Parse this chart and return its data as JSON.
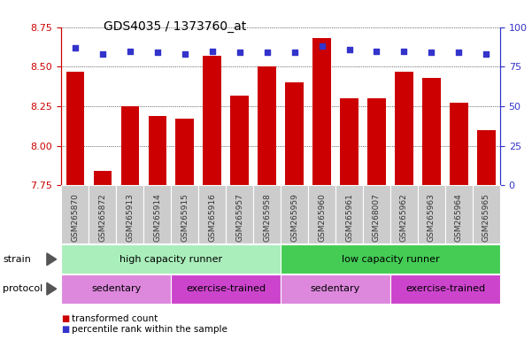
{
  "title": "GDS4035 / 1373760_at",
  "samples": [
    "GSM265870",
    "GSM265872",
    "GSM265913",
    "GSM265914",
    "GSM265915",
    "GSM265916",
    "GSM265957",
    "GSM265958",
    "GSM265959",
    "GSM265960",
    "GSM265961",
    "GSM268007",
    "GSM265962",
    "GSM265963",
    "GSM265964",
    "GSM265965"
  ],
  "bar_values": [
    8.47,
    7.84,
    8.25,
    8.19,
    8.17,
    8.57,
    8.32,
    8.5,
    8.4,
    8.68,
    8.3,
    8.3,
    8.47,
    8.43,
    8.27,
    8.1
  ],
  "percentile_values": [
    87,
    83,
    85,
    84,
    83,
    85,
    84,
    84,
    84,
    88,
    86,
    85,
    85,
    84,
    84,
    83
  ],
  "ylim_left": [
    7.75,
    8.75
  ],
  "ylim_right": [
    0,
    100
  ],
  "yticks_left": [
    7.75,
    8.0,
    8.25,
    8.5,
    8.75
  ],
  "yticks_right": [
    0,
    25,
    50,
    75,
    100
  ],
  "bar_color": "#cc0000",
  "dot_color": "#3333cc",
  "grid_color": "#000000",
  "bg_color": "#ffffff",
  "xticklabel_bg": "#cccccc",
  "strain_groups": [
    {
      "label": "high capacity runner",
      "start": 0,
      "end": 8,
      "color": "#aaeebb"
    },
    {
      "label": "low capacity runner",
      "start": 8,
      "end": 16,
      "color": "#44cc55"
    }
  ],
  "protocol_groups": [
    {
      "label": "sedentary",
      "start": 0,
      "end": 4,
      "color": "#dd88dd"
    },
    {
      "label": "exercise-trained",
      "start": 4,
      "end": 8,
      "color": "#cc44cc"
    },
    {
      "label": "sedentary",
      "start": 8,
      "end": 12,
      "color": "#dd88dd"
    },
    {
      "label": "exercise-trained",
      "start": 12,
      "end": 16,
      "color": "#cc44cc"
    }
  ],
  "legend_items": [
    {
      "label": "transformed count",
      "color": "#cc0000"
    },
    {
      "label": "percentile rank within the sample",
      "color": "#3333cc"
    }
  ],
  "bar_width": 0.65,
  "tick_label_fontsize": 6.5,
  "axis_label_color_left": "#cc0000",
  "axis_label_color_right": "#3333cc",
  "title_fontsize": 10
}
